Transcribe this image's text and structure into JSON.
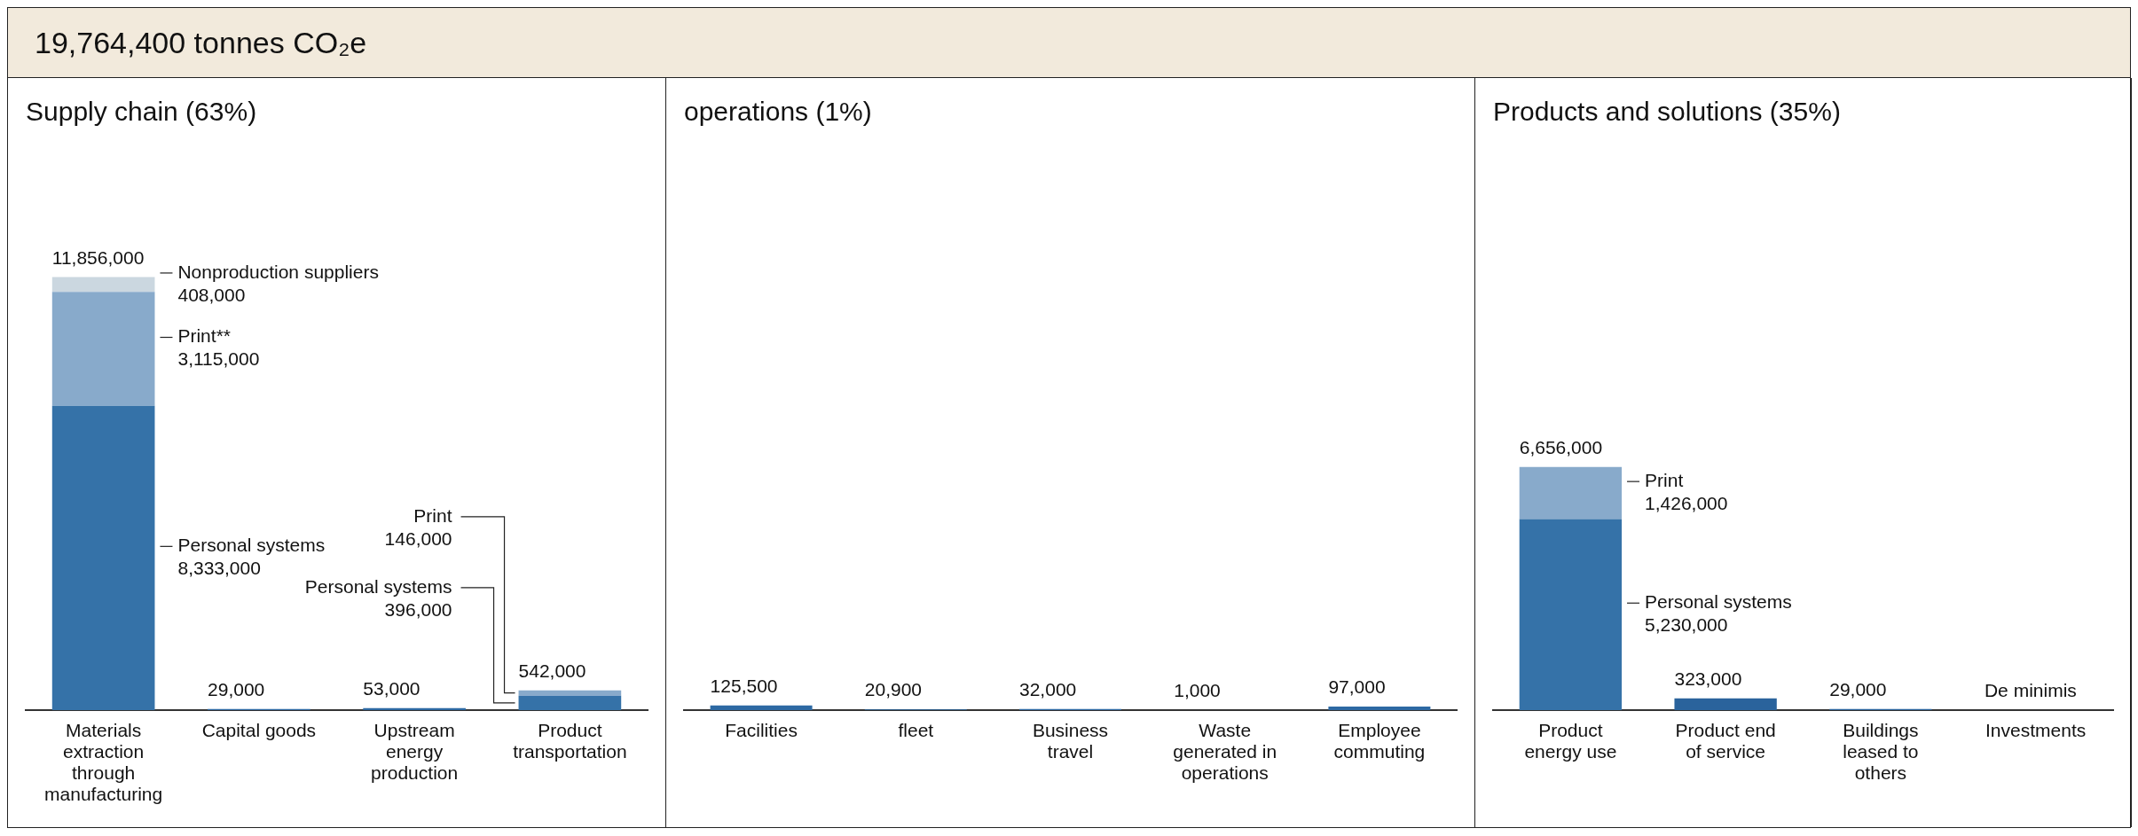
{
  "chart_data": [
    {
      "type": "other",
      "title": "19,764,400 tonnes CO₂e"
    },
    {
      "type": "bar",
      "title": "Supply chain (63%)",
      "stacked": true,
      "categories": [
        "Materials extraction through manufacturing",
        "Capital goods",
        "Upstream energy production",
        "Product transportation"
      ],
      "series": [
        {
          "name": "Personal systems",
          "color": "#3572a8",
          "values": [
            8333000,
            null,
            null,
            396000
          ],
          "value_labels": [
            "8,333,000",
            null,
            null,
            "396,000"
          ]
        },
        {
          "name": "Print**",
          "color": "#88aacb",
          "values": [
            3115000,
            null,
            null,
            null
          ],
          "value_labels": [
            "3,115,000",
            null,
            null,
            null
          ]
        },
        {
          "name": "Print",
          "color": "#88aacb",
          "values": [
            null,
            null,
            null,
            146000
          ],
          "value_labels": [
            null,
            null,
            null,
            "146,000"
          ]
        },
        {
          "name": "Nonproduction suppliers",
          "color": "#cbd7e0",
          "values": [
            408000,
            null,
            null,
            null
          ],
          "value_labels": [
            "408,000",
            null,
            null,
            null
          ]
        },
        {
          "color": "#2d69a3",
          "values": [
            null,
            29000,
            53000,
            null
          ],
          "value_labels": [
            null,
            "29,000",
            "53,000",
            null
          ]
        }
      ],
      "totals": [
        "11,856,000",
        null,
        null,
        "542,000"
      ]
    },
    {
      "type": "bar",
      "title": "operations (1%)",
      "categories": [
        "Facilities",
        "fleet",
        "Business travel",
        "Waste generated in operations",
        "Employee commuting"
      ],
      "series": [
        {
          "color": "#2d69a3",
          "values": [
            125500,
            20900,
            32000,
            1000,
            97000
          ],
          "value_labels": [
            "125,500",
            "20,900",
            "32,000",
            "1,000",
            "97,000"
          ]
        }
      ]
    },
    {
      "type": "bar",
      "title": "Products and solutions (35%)",
      "stacked": true,
      "categories": [
        "Product energy use",
        "Product end of service",
        "Buildings leased to others",
        "Investments"
      ],
      "series": [
        {
          "name": "Personal systems",
          "color": "#3572a8",
          "values": [
            5230000,
            null,
            null,
            null
          ],
          "value_labels": [
            "5,230,000",
            null,
            null,
            null
          ]
        },
        {
          "name": "Print",
          "color": "#88aacb",
          "values": [
            1426000,
            null,
            null,
            null
          ],
          "value_labels": [
            "1,426,000",
            null,
            null,
            null
          ]
        },
        {
          "color": "#2a639c",
          "values": [
            null,
            323000,
            29000,
            null
          ],
          "value_labels": [
            null,
            "323,000",
            "29,000",
            "De minimis"
          ]
        }
      ],
      "totals": [
        "6,656,000",
        null,
        null,
        null
      ]
    }
  ]
}
